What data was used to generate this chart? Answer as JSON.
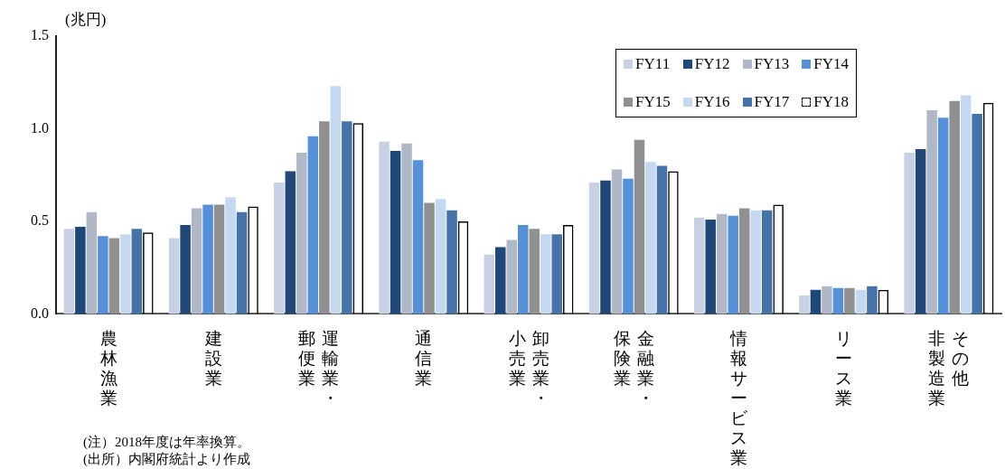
{
  "chart_data": {
    "type": "bar",
    "ylabel": "(兆円)",
    "categories": [
      "農林漁業",
      "建設業",
      "運輸業・郵便業",
      "通信業",
      "卸売業・小売業",
      "金融業・保険業",
      "情報サービス業",
      "リース業",
      "その他非製造業"
    ],
    "series": [
      {
        "name": "FY11",
        "color": "#c8d0e4",
        "values": [
          0.46,
          0.41,
          0.71,
          0.93,
          0.32,
          0.71,
          0.52,
          0.1,
          0.87
        ]
      },
      {
        "name": "FY12",
        "color": "#1f4778",
        "values": [
          0.47,
          0.48,
          0.77,
          0.88,
          0.36,
          0.72,
          0.51,
          0.13,
          0.89
        ]
      },
      {
        "name": "FY13",
        "color": "#b0b8c8",
        "values": [
          0.55,
          0.57,
          0.87,
          0.92,
          0.4,
          0.78,
          0.54,
          0.15,
          1.1
        ]
      },
      {
        "name": "FY14",
        "color": "#5590d8",
        "values": [
          0.42,
          0.59,
          0.96,
          0.83,
          0.48,
          0.73,
          0.53,
          0.14,
          1.06
        ]
      },
      {
        "name": "FY15",
        "color": "#909090",
        "values": [
          0.41,
          0.59,
          1.04,
          0.6,
          0.46,
          0.94,
          0.57,
          0.14,
          1.15
        ]
      },
      {
        "name": "FY16",
        "color": "#c4d8f0",
        "values": [
          0.43,
          0.63,
          1.23,
          0.62,
          0.43,
          0.82,
          0.56,
          0.13,
          1.18
        ]
      },
      {
        "name": "FY17",
        "color": "#4573a8",
        "values": [
          0.46,
          0.55,
          1.04,
          0.56,
          0.43,
          0.8,
          0.56,
          0.15,
          1.08
        ]
      },
      {
        "name": "FY18",
        "color": "#000000",
        "line_style": "dashed",
        "values": [
          0.44,
          0.58,
          1.03,
          0.5,
          0.48,
          0.77,
          0.59,
          0.13,
          1.14
        ]
      }
    ],
    "ylim": [
      0,
      1.5
    ],
    "yticks": [
      {
        "value": 0,
        "label": "0.0"
      },
      0.5,
      {
        "value": 1,
        "label": "1.0"
      },
      1.5
    ],
    "grid": false,
    "legend": "top right",
    "annotations": [
      "(注）2018年度は年率換算。",
      "(出所）内閣府統計より作成"
    ]
  }
}
